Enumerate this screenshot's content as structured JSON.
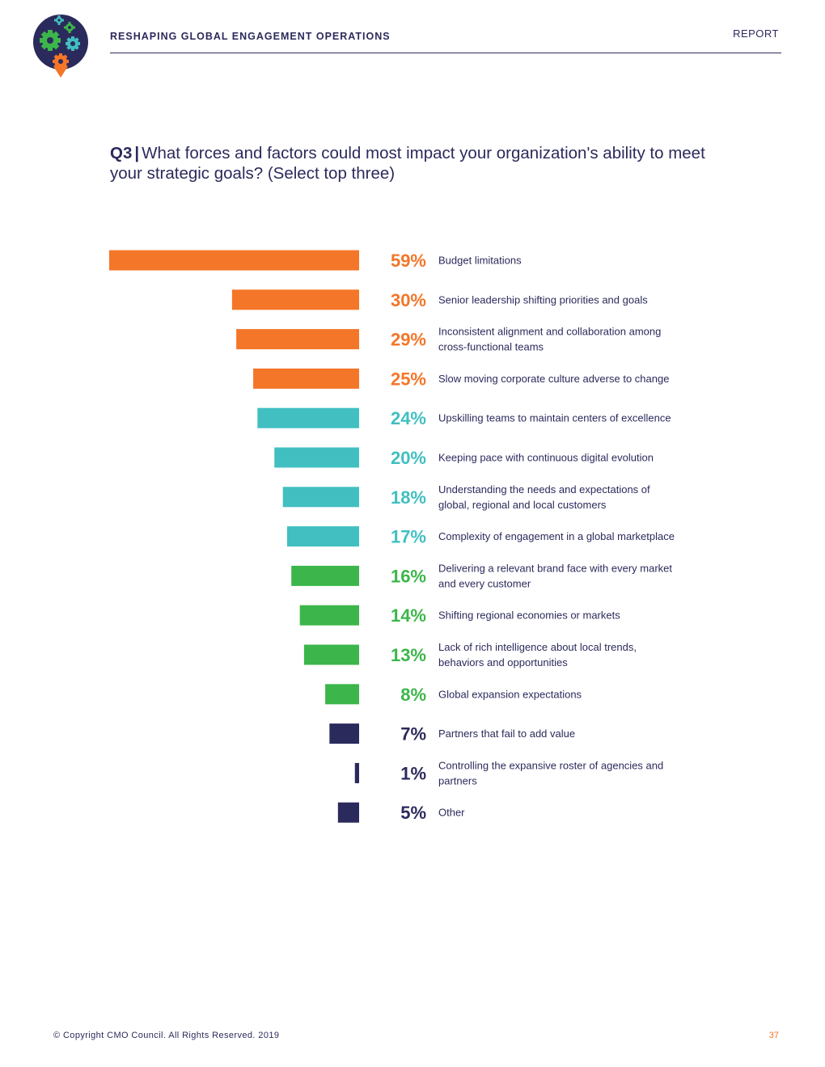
{
  "header": {
    "title": "RESHAPING GLOBAL ENGAGEMENT OPERATIONS",
    "report_label": "REPORT"
  },
  "question": {
    "number": "Q3",
    "separator": "|",
    "text": "What forces and factors could most impact your organization's ability to meet your strategic goals? (Select top three)"
  },
  "colors": {
    "orange": "#f47628",
    "teal": "#41bfc1",
    "green": "#3cb64a",
    "navy": "#2b2a5c"
  },
  "chart_data": {
    "type": "bar",
    "orientation": "horizontal",
    "title": "What forces and factors could most impact your organization's ability to meet your strategic goals? (Select top three)",
    "xlim": [
      0,
      59
    ],
    "categories": [
      "Budget limitations",
      "Senior leadership shifting priorities and goals",
      "Inconsistent alignment and collaboration among cross-functional teams",
      "Slow moving corporate culture adverse to change",
      "Upskilling teams to maintain centers of excellence",
      "Keeping pace with continuous digital evolution",
      "Understanding the needs and expectations of global, regional and local customers",
      "Complexity of engagement in a global marketplace",
      "Delivering a relevant brand face with every market and every customer",
      "Shifting regional economies or markets",
      "Lack of rich intelligence about local trends, behaviors and opportunities",
      "Global expansion expectations",
      "Partners that fail to add value",
      "Controlling the expansive roster of agencies and partners",
      "Other"
    ],
    "label_lines": [
      [
        "Budget limitations"
      ],
      [
        "Senior leadership shifting priorities and goals"
      ],
      [
        "Inconsistent alignment and collaboration among",
        "cross-functional teams"
      ],
      [
        "Slow moving corporate culture adverse to change"
      ],
      [
        "Upskilling teams to maintain centers of excellence"
      ],
      [
        "Keeping pace with continuous digital evolution"
      ],
      [
        "Understanding the needs and expectations of",
        "global, regional and local customers"
      ],
      [
        "Complexity of engagement in a global marketplace"
      ],
      [
        "Delivering a relevant brand face with every market",
        "and every customer"
      ],
      [
        "Shifting regional economies or markets"
      ],
      [
        "Lack of rich intelligence about local trends,",
        "behaviors and opportunities"
      ],
      [
        "Global expansion expectations"
      ],
      [
        "Partners that fail to add value"
      ],
      [
        "Controlling the expansive roster of agencies and",
        "partners"
      ],
      [
        "Other"
      ]
    ],
    "values": [
      59,
      30,
      29,
      25,
      24,
      20,
      18,
      17,
      16,
      14,
      13,
      8,
      7,
      1,
      5
    ],
    "value_labels": [
      "59%",
      "30%",
      "29%",
      "25%",
      "24%",
      "20%",
      "18%",
      "17%",
      "16%",
      "14%",
      "13%",
      "8%",
      "7%",
      "1%",
      "5%"
    ],
    "color_groups": [
      "orange",
      "orange",
      "orange",
      "orange",
      "teal",
      "teal",
      "teal",
      "teal",
      "green",
      "green",
      "green",
      "green",
      "navy",
      "navy",
      "navy"
    ]
  },
  "footer": {
    "copyright": "© Copyright CMO Council. All Rights Reserved. 2019",
    "page_number": "37"
  }
}
